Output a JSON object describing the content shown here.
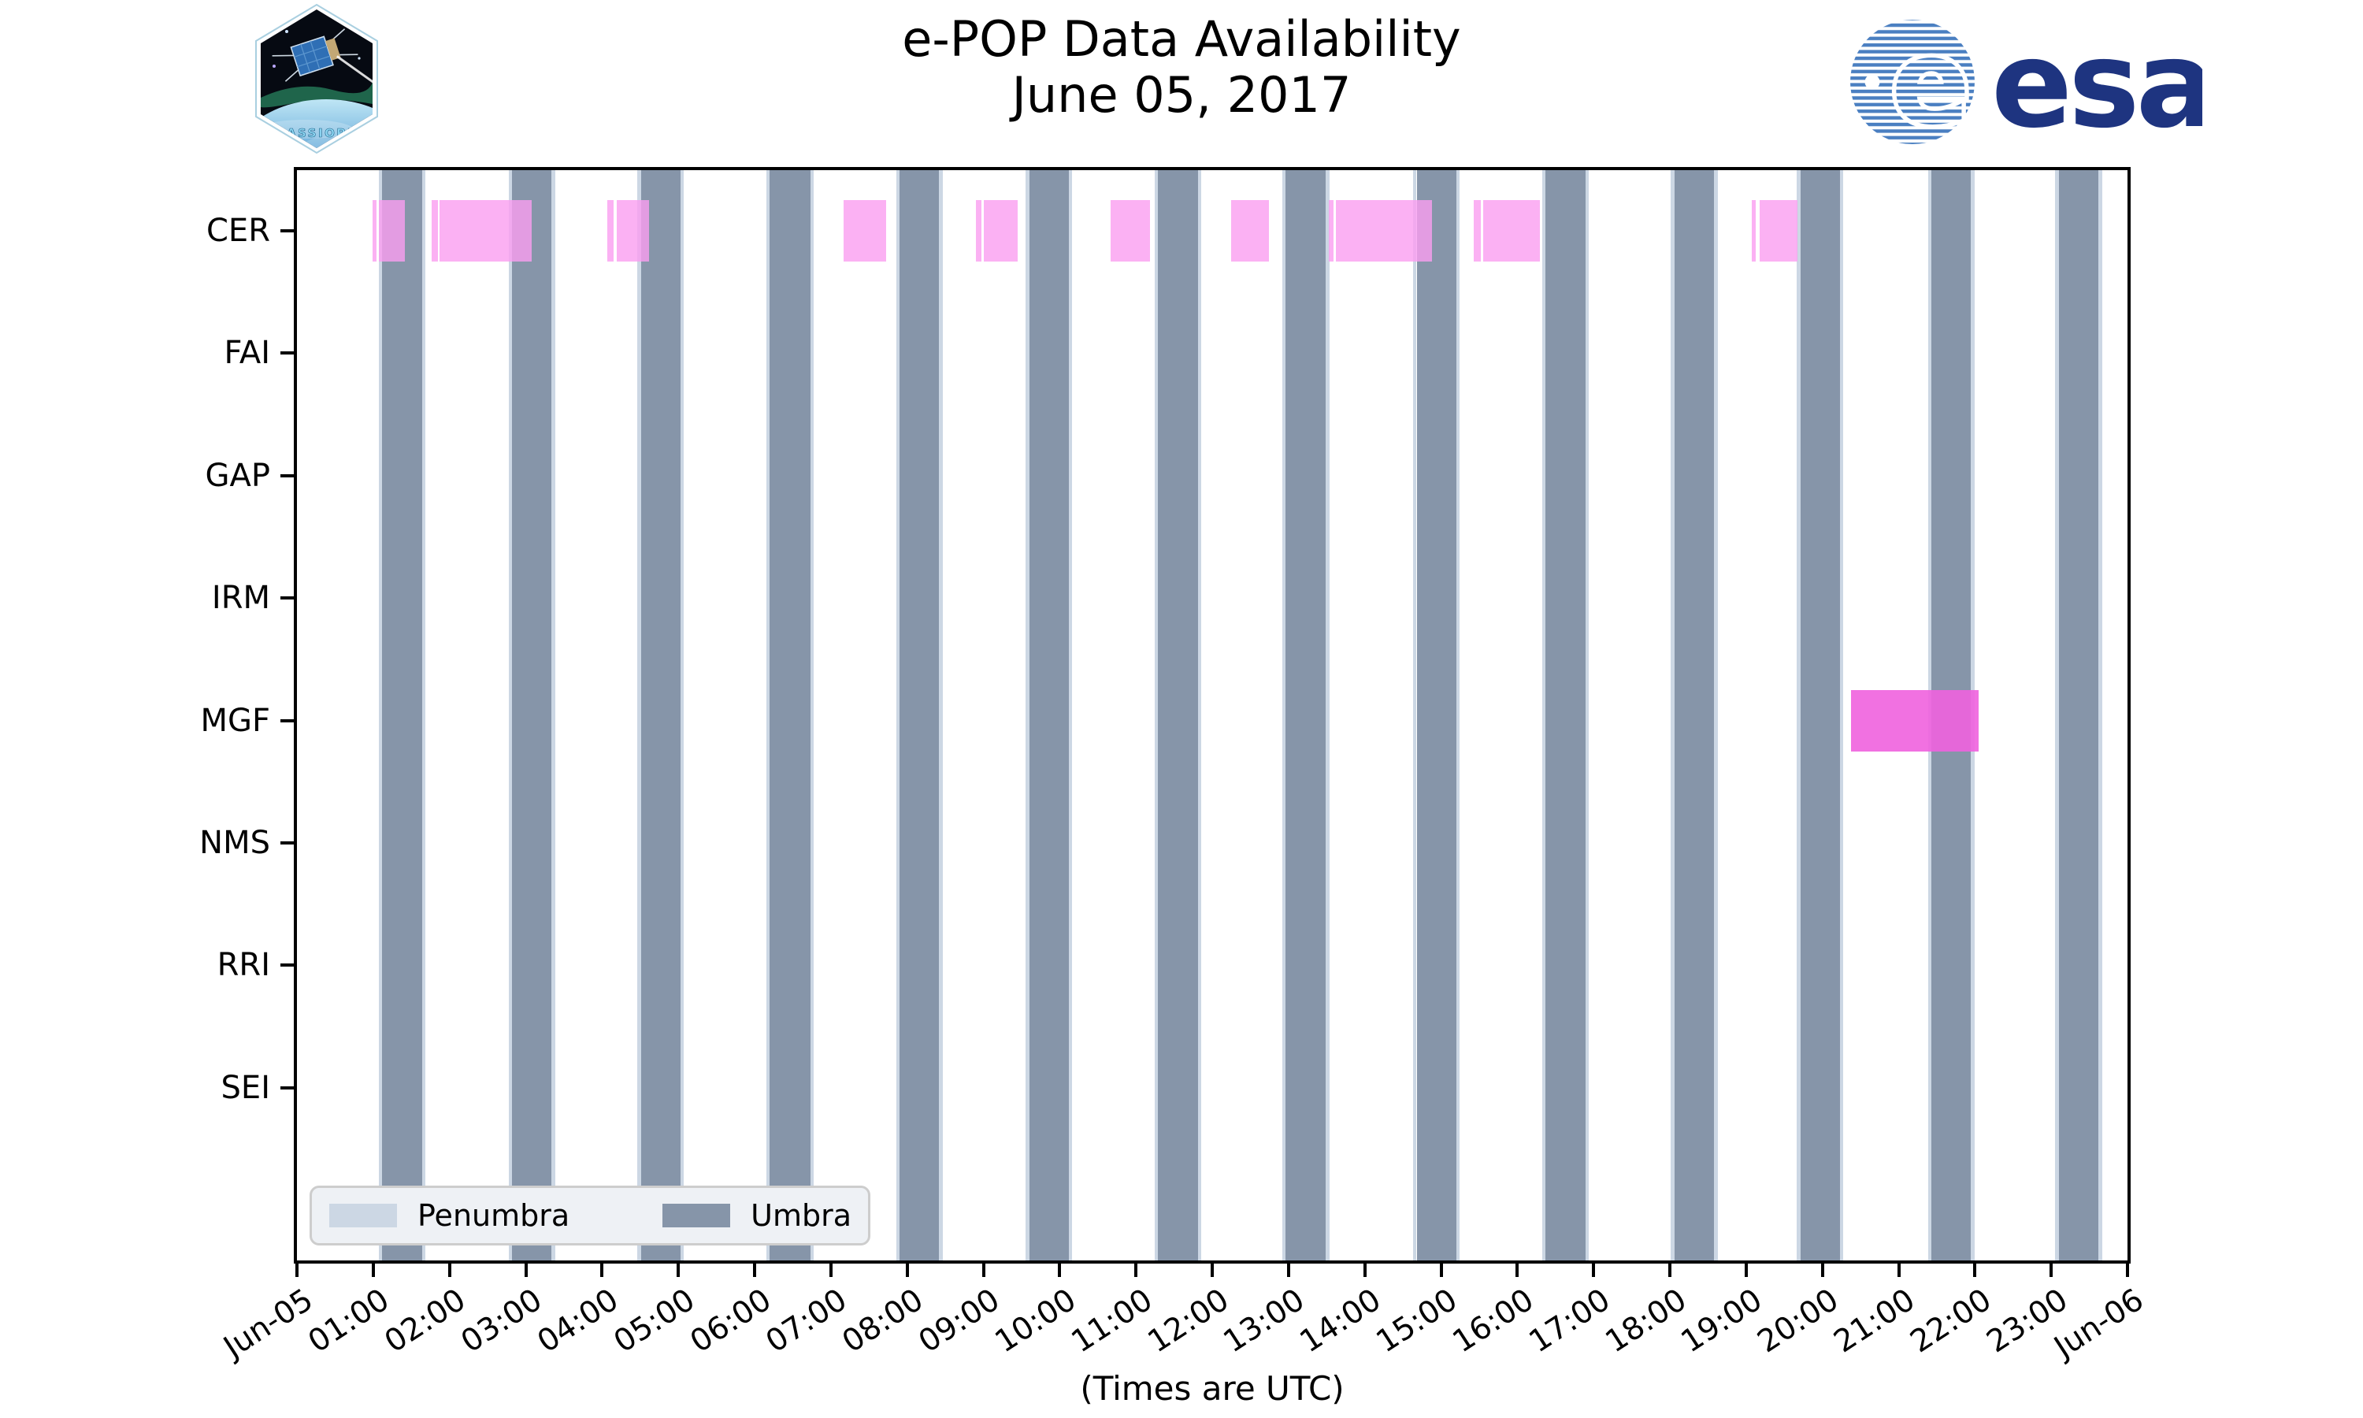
{
  "title": {
    "line1": "e-POP Data Availability",
    "line2": "June 05, 2017"
  },
  "branding": {
    "cassiope_text": "CASSIOPE",
    "esa_text": "esa",
    "esa_navy": "#1e3480",
    "esa_stripe_blue": "#4a7fc1",
    "patch_text_blue": "#8fd8f4"
  },
  "chart_data": {
    "type": "timeline",
    "title": "e-POP Data Availability",
    "subtitle": "June 05, 2017",
    "xlabel": "(Times are UTC)",
    "x_range_hours": [
      0,
      24
    ],
    "x_tick_labels": [
      "Jun-05",
      "01:00",
      "02:00",
      "03:00",
      "04:00",
      "05:00",
      "06:00",
      "07:00",
      "08:00",
      "09:00",
      "10:00",
      "11:00",
      "12:00",
      "13:00",
      "14:00",
      "15:00",
      "16:00",
      "17:00",
      "18:00",
      "19:00",
      "20:00",
      "21:00",
      "22:00",
      "23:00",
      "Jun-06"
    ],
    "categories": [
      "CER",
      "FAI",
      "GAP",
      "IRM",
      "MGF",
      "NMS",
      "RRI",
      "SEI"
    ],
    "legend": [
      {
        "label": "Penumbra",
        "color": "#ccd7e4"
      },
      {
        "label": "Umbra",
        "color": "#8695a9"
      }
    ],
    "legend_position": "lower left",
    "grid": false,
    "umbra_intervals_hours": [
      [
        1.12,
        1.64
      ],
      [
        2.82,
        3.34
      ],
      [
        4.51,
        5.03
      ],
      [
        6.2,
        6.73
      ],
      [
        7.9,
        8.42
      ],
      [
        9.6,
        10.12
      ],
      [
        11.29,
        11.81
      ],
      [
        12.96,
        13.49
      ],
      [
        14.68,
        15.2
      ],
      [
        16.37,
        16.89
      ],
      [
        18.06,
        18.58
      ],
      [
        19.71,
        20.23
      ],
      [
        21.43,
        21.95
      ],
      [
        23.1,
        23.62
      ]
    ],
    "penumbra_edge_hours": 0.045,
    "availability_hours": {
      "CER": [
        [
          0.99,
          1.04
        ],
        [
          1.07,
          1.41
        ],
        [
          1.77,
          1.85
        ],
        [
          1.87,
          3.08
        ],
        [
          4.07,
          4.15
        ],
        [
          4.19,
          4.62
        ],
        [
          7.17,
          7.72
        ],
        [
          8.9,
          8.97
        ],
        [
          9.0,
          9.45
        ],
        [
          10.67,
          11.18
        ],
        [
          12.25,
          12.74
        ],
        [
          13.53,
          13.59
        ],
        [
          13.62,
          14.88
        ],
        [
          15.43,
          15.52
        ],
        [
          15.55,
          16.3
        ],
        [
          19.07,
          19.13
        ],
        [
          19.18,
          19.67
        ]
      ],
      "FAI": [],
      "GAP": [],
      "IRM": [],
      "MGF": [
        [
          20.38,
          22.05
        ]
      ],
      "NMS": [],
      "RRI": [],
      "SEI": []
    },
    "colors": {
      "CER": "rgba(250,158,240,0.80)",
      "MGF": "rgba(240,98,222,0.90)",
      "umbra": "#8695a9",
      "penumbra": "#ccd7e4",
      "axis": "#000000"
    }
  }
}
